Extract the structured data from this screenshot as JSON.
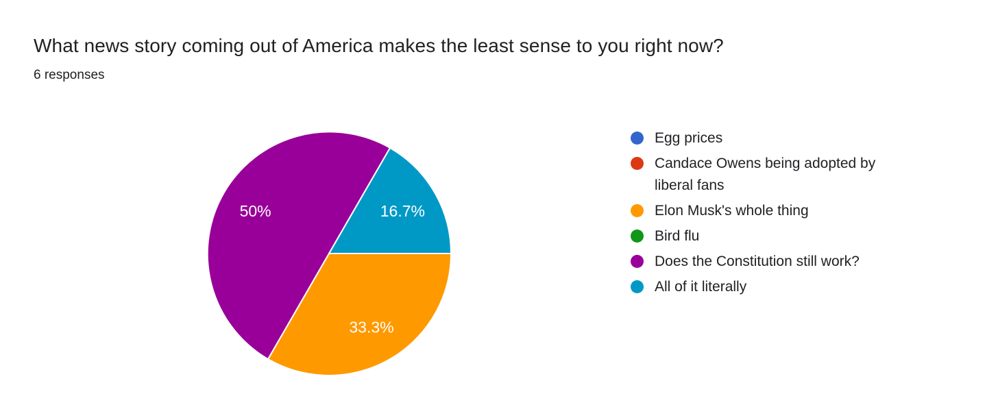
{
  "header": {
    "title": "What news story coming out of America makes the least sense to you right now?",
    "subtitle": "6 responses"
  },
  "chart_data": {
    "type": "pie",
    "title": "What news story coming out of America makes the least sense to you right now?",
    "subtitle": "6 responses",
    "total_responses": 6,
    "categories": [
      "Egg prices",
      "Candace Owens being adopted by liberal fans",
      "Elon Musk's whole thing",
      "Bird flu",
      "Does the Constitution still work?",
      "All of it literally"
    ],
    "values": [
      0,
      0,
      2,
      0,
      3,
      1
    ],
    "percentages": [
      0,
      0,
      33.3,
      0,
      50,
      16.7
    ],
    "slice_labels": [
      "",
      "",
      "33.3%",
      "",
      "50%",
      "16.7%"
    ],
    "colors": [
      "#3366CC",
      "#DC3912",
      "#FF9900",
      "#109618",
      "#990099",
      "#0099C6"
    ],
    "slice_label_color": "#ffffff",
    "slice_border_color": "#ffffff",
    "legend_position": "right",
    "start_angle_deg": 90
  }
}
